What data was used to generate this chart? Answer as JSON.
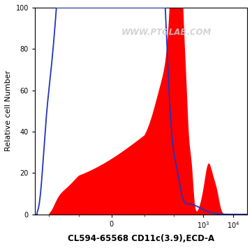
{
  "title": "",
  "xlabel": "CL594-65568 CD11c(3.9),ECD-A",
  "ylabel": "Relative cell Number",
  "watermark": "WWW.PTGLAB.COM",
  "ylim": [
    0,
    100
  ],
  "yticks": [
    0,
    20,
    40,
    60,
    80,
    100
  ],
  "background_color": "#ffffff",
  "plot_bg_color": "#ffffff",
  "blue_color": "#2233bb",
  "red_color": "#ff0000",
  "blue_linewidth": 1.3,
  "symlog_linthresh": 10,
  "xlim": [
    -300,
    30000
  ]
}
